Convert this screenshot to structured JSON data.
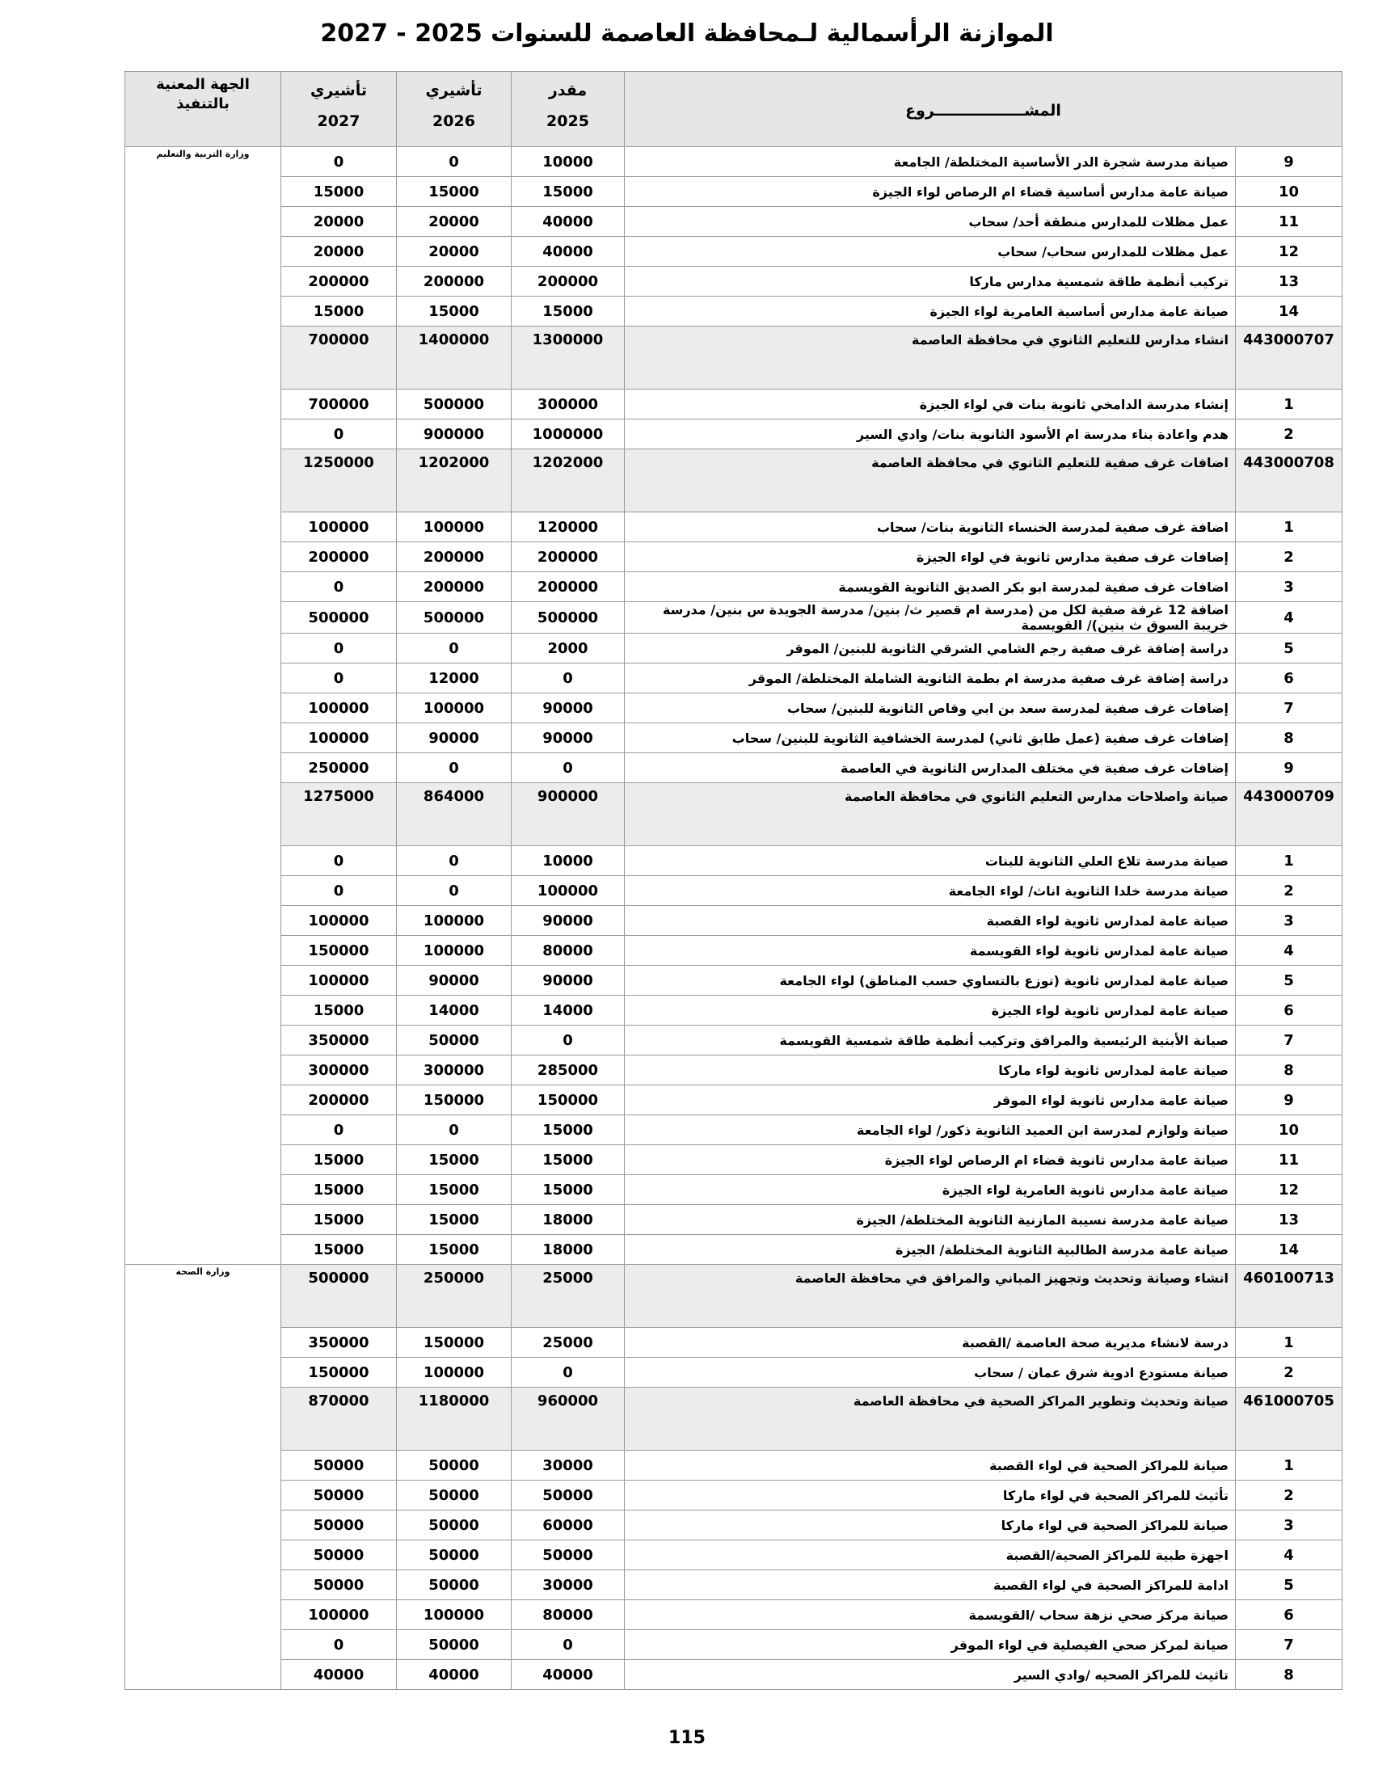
{
  "title": "الموازنة الرأسمالية لـمحافظة العاصمة للسنوات 2025 - 2027",
  "header": {
    "project": "المشـــــــــــــــــروع",
    "y2025": {
      "label": "مقدر",
      "year": 2025
    },
    "y2026": {
      "label": "تأشيري",
      "year": 2026
    },
    "y2027": {
      "label": "تأشيري",
      "year": 2027
    },
    "agency": [
      "الجهة المعنية",
      "بالتنفيذ"
    ]
  },
  "sections": [
    {
      "agency": "وزارة التربية والتعليم",
      "rows": [
        {
          "no": 9,
          "project": "صيانة مدرسة شجرة الدر الأساسية المختلطة/ الجامعة",
          "y2025": 10000,
          "y2026": 0,
          "y2027": 0
        },
        {
          "no": 10,
          "project": "صيانة عامة مدارس أساسية قضاء ام الرصاص لواء الجيزة",
          "y2025": 15000,
          "y2026": 15000,
          "y2027": 15000
        },
        {
          "no": 11,
          "project": "عمل مظلات للمدارس منطقة أحد/ سحاب",
          "y2025": 40000,
          "y2026": 20000,
          "y2027": 20000
        },
        {
          "no": 12,
          "project": "عمل مظلات للمدارس سحاب/ سحاب",
          "y2025": 40000,
          "y2026": 20000,
          "y2027": 20000
        },
        {
          "no": 13,
          "project": "تركيب أنظمة طاقة شمسية مدارس ماركا",
          "y2025": 200000,
          "y2026": 200000,
          "y2027": 200000
        },
        {
          "no": 14,
          "project": "صيانة عامة مدارس أساسية العامرية لواء الجيزة",
          "y2025": 15000,
          "y2026": 15000,
          "y2027": 15000
        },
        {
          "no": 443000707,
          "project": "انشاء مدارس للتعليم الثانوي في محافظة العاصمة",
          "y2025": 1300000,
          "y2026": 1400000,
          "y2027": 700000
        },
        {
          "no": 1,
          "project": "إنشاء مدرسة الدامخي ثانوية بنات في لواء الجيزة",
          "y2025": 300000,
          "y2026": 500000,
          "y2027": 700000
        },
        {
          "no": 2,
          "project": "هدم واعادة بناء مدرسة ام الأسود الثانوية بنات/ وادي السير",
          "y2025": 1000000,
          "y2026": 900000,
          "y2027": 0
        },
        {
          "no": 443000708,
          "project": "اضافات غرف صفية للتعليم الثانوي في محافظة العاصمة",
          "y2025": 1202000,
          "y2026": 1202000,
          "y2027": 1250000
        },
        {
          "no": 1,
          "project": "اضافة غرف صفية لمدرسة الخنساء الثانوية بنات/ سحاب",
          "y2025": 120000,
          "y2026": 100000,
          "y2027": 100000
        },
        {
          "no": 2,
          "project": "إضافات غرف صفية مدارس ثانوية في لواء الجيزة",
          "y2025": 200000,
          "y2026": 200000,
          "y2027": 200000
        },
        {
          "no": 3,
          "project": "اضافات غرف صفية لمدرسة ابو بكر الصديق الثانوية القويسمة",
          "y2025": 200000,
          "y2026": 200000,
          "y2027": 0
        },
        {
          "no": 4,
          "project": "اضافة 12 غرفة صفية لكل من (مدرسة ام قصير ث/ بنين/ مدرسة الجويدة س بنين/ مدرسة خريبة السوق ث بنين)/ القويسمة",
          "y2025": 500000,
          "y2026": 500000,
          "y2027": 500000
        },
        {
          "no": 5,
          "project": "دراسة إضافة غرف صفية رجم الشامي الشرقي الثانوية للبنين/ الموقر",
          "y2025": 2000,
          "y2026": 0,
          "y2027": 0
        },
        {
          "no": 6,
          "project": "دراسة إضافة غرف صفية مدرسة ام بطمة الثانوية الشاملة المختلطة/ الموقر",
          "y2025": 0,
          "y2026": 12000,
          "y2027": 0
        },
        {
          "no": 7,
          "project": "إضافات غرف صفية لمدرسة سعد بن ابي وقاص الثانوية للبنين/ سحاب",
          "y2025": 90000,
          "y2026": 100000,
          "y2027": 100000
        },
        {
          "no": 8,
          "project": "إضافات غرف صفية (عمل طابق ثاني) لمدرسة الخشافية الثانوية للبنين/ سحاب",
          "y2025": 90000,
          "y2026": 90000,
          "y2027": 100000
        },
        {
          "no": 9,
          "project": "إضافات غرف صفية في مختلف المدارس الثانوية في العاصمة",
          "y2025": 0,
          "y2026": 0,
          "y2027": 250000
        },
        {
          "no": 443000709,
          "project": "صيانة واصلاحات مدارس التعليم الثانوي في محافظة العاصمة",
          "y2025": 900000,
          "y2026": 864000,
          "y2027": 1275000
        },
        {
          "no": 1,
          "project": "صيانة مدرسة تلاع العلي الثانوية للبنات",
          "y2025": 10000,
          "y2026": 0,
          "y2027": 0
        },
        {
          "no": 2,
          "project": "صيانة مدرسة خلدا الثانوية اناث/ لواء الجامعة",
          "y2025": 100000,
          "y2026": 0,
          "y2027": 0
        },
        {
          "no": 3,
          "project": "صيانة عامة لمدارس ثانوية لواء القصبة",
          "y2025": 90000,
          "y2026": 100000,
          "y2027": 100000
        },
        {
          "no": 4,
          "project": "صيانة عامة لمدارس ثانوية لواء القويسمة",
          "y2025": 80000,
          "y2026": 100000,
          "y2027": 150000
        },
        {
          "no": 5,
          "project": "صيانة عامة لمدارس ثانوية (توزع بالتساوي حسب المناطق) لواء الجامعة",
          "y2025": 90000,
          "y2026": 90000,
          "y2027": 100000
        },
        {
          "no": 6,
          "project": "صيانة عامة لمدارس ثانوية لواء الجيزة",
          "y2025": 14000,
          "y2026": 14000,
          "y2027": 15000
        },
        {
          "no": 7,
          "project": "صيانة الأبنية الرئيسية والمرافق وتركيب أنظمة طاقة شمسية القويسمة",
          "y2025": 0,
          "y2026": 50000,
          "y2027": 350000
        },
        {
          "no": 8,
          "project": "صيانة عامة لمدارس ثانوية لواء ماركا",
          "y2025": 285000,
          "y2026": 300000,
          "y2027": 300000
        },
        {
          "no": 9,
          "project": "صيانة عامة مدارس ثانوية لواء الموقر",
          "y2025": 150000,
          "y2026": 150000,
          "y2027": 200000
        },
        {
          "no": 10,
          "project": "صيانة ولوازم لمدرسة ابن العميد الثانوية ذكور/ لواء الجامعة",
          "y2025": 15000,
          "y2026": 0,
          "y2027": 0
        },
        {
          "no": 11,
          "project": "صيانة عامة مدارس ثانوية قضاء ام الرصاص لواء الجيزة",
          "y2025": 15000,
          "y2026": 15000,
          "y2027": 15000
        },
        {
          "no": 12,
          "project": "صيانة عامة مدارس ثانوية العامرية لواء الجيزة",
          "y2025": 15000,
          "y2026": 15000,
          "y2027": 15000
        },
        {
          "no": 13,
          "project": "صيانة عامة مدرسة نسيبة المازنية الثانوية المختلطة/ الجيزة",
          "y2025": 18000,
          "y2026": 15000,
          "y2027": 15000
        },
        {
          "no": 14,
          "project": "صيانة عامة مدرسة الطالبية الثانوية المختلطة/ الجيزة",
          "y2025": 18000,
          "y2026": 15000,
          "y2027": 15000
        }
      ]
    },
    {
      "agency": "وزارة الصحة",
      "rows": [
        {
          "no": 460100713,
          "project": "انشاء وصيانة وتحديث وتجهيز المباني والمرافق في محافظة العاصمة",
          "y2025": 25000,
          "y2026": 250000,
          "y2027": 500000
        },
        {
          "no": 1,
          "project": "درسة لانشاء مديرية صحة العاصمة /القصبة",
          "y2025": 25000,
          "y2026": 150000,
          "y2027": 350000
        },
        {
          "no": 2,
          "project": "صيانة مستودع ادوية شرق عمان / سحاب",
          "y2025": 0,
          "y2026": 100000,
          "y2027": 150000
        },
        {
          "no": 461000705,
          "project": "صيانة وتحديث وتطوير المراكز الصحية في محافظة العاصمة",
          "y2025": 960000,
          "y2026": 1180000,
          "y2027": 870000
        },
        {
          "no": 1,
          "project": "صيانة للمراكز الصحية في لواء القصبة",
          "y2025": 30000,
          "y2026": 50000,
          "y2027": 50000
        },
        {
          "no": 2,
          "project": "تأثيث للمراكز الصحية في لواء ماركا",
          "y2025": 50000,
          "y2026": 50000,
          "y2027": 50000
        },
        {
          "no": 3,
          "project": "صيانة للمراكز الصحية في لواء ماركا",
          "y2025": 60000,
          "y2026": 50000,
          "y2027": 50000
        },
        {
          "no": 4,
          "project": "اجهزة طبية للمراكز الصحية/القصبة",
          "y2025": 50000,
          "y2026": 50000,
          "y2027": 50000
        },
        {
          "no": 5,
          "project": "ادامة للمراكز الصحية في لواء القصبة",
          "y2025": 30000,
          "y2026": 50000,
          "y2027": 50000
        },
        {
          "no": 6,
          "project": "صيانة مركز صحي نزهة سحاب /القويسمة",
          "y2025": 80000,
          "y2026": 100000,
          "y2027": 100000
        },
        {
          "no": 7,
          "project": "صيانة لمركز صحي الفيصلية في لواء الموقر",
          "y2025": 0,
          "y2026": 50000,
          "y2027": 0
        },
        {
          "no": 8,
          "project": "تاثيث للمراكز الصحيه /وادي السير",
          "y2025": 40000,
          "y2026": 40000,
          "y2027": 40000
        }
      ]
    }
  ],
  "page_number": 115
}
